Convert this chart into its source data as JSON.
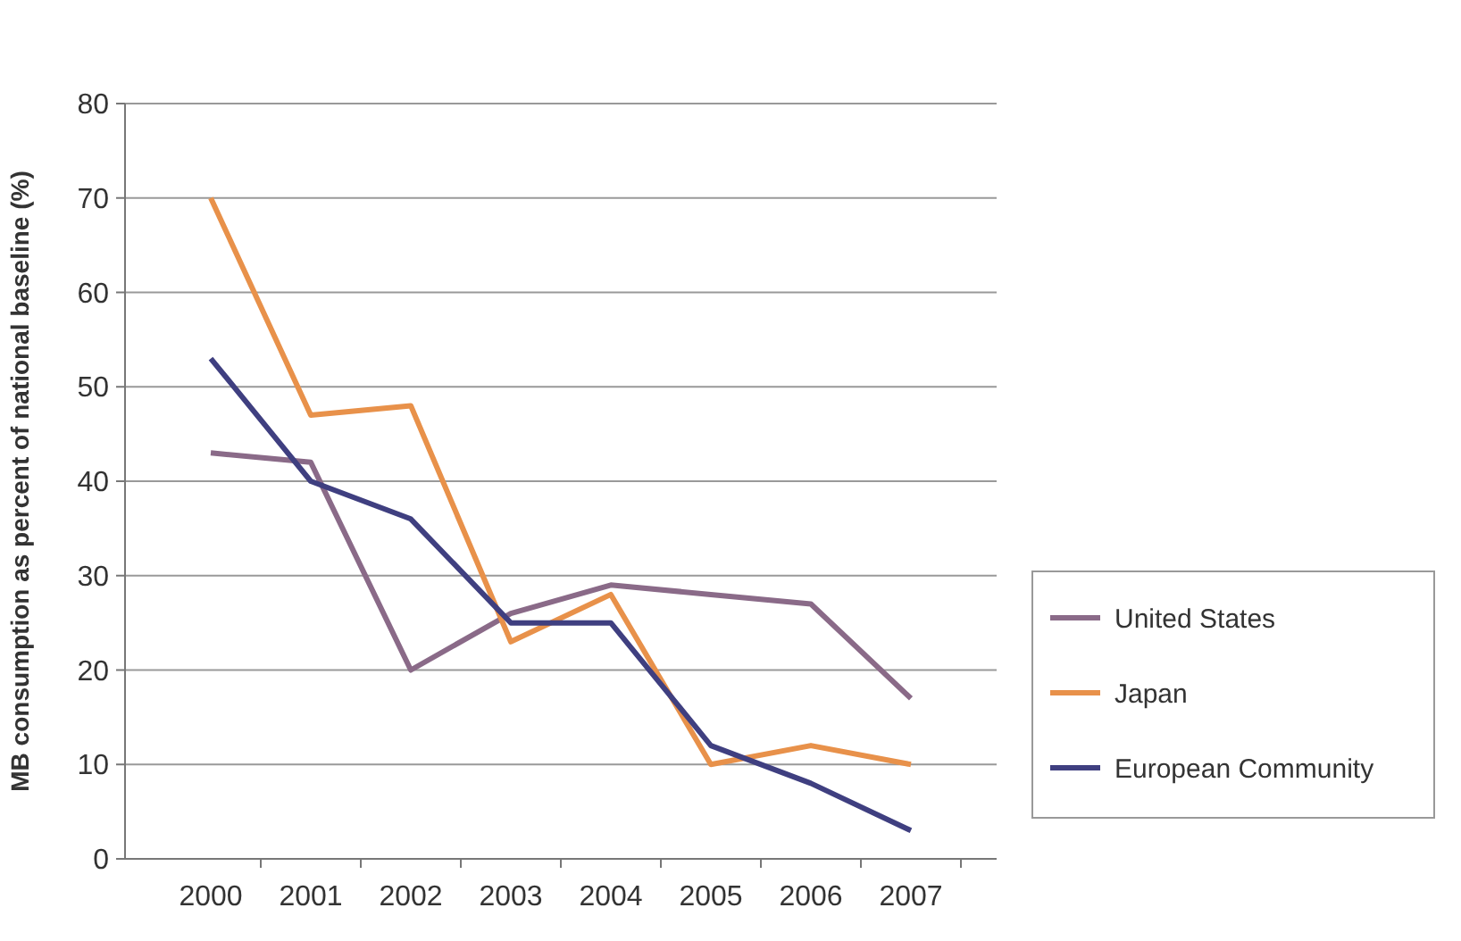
{
  "chart_data": {
    "type": "line",
    "ylabel": "MB consumption as percent of national baseline (%)",
    "categories": [
      "2000",
      "2001",
      "2002",
      "2003",
      "2004",
      "2005",
      "2006",
      "2007"
    ],
    "series": [
      {
        "name": "United States",
        "color": "#8a6a88",
        "values": [
          43,
          42,
          20,
          26,
          29,
          28,
          27,
          17
        ]
      },
      {
        "name": "Japan",
        "color": "#e8914a",
        "values": [
          70,
          47,
          48,
          23,
          28,
          10,
          12,
          10
        ]
      },
      {
        "name": "European Community",
        "color": "#3f3f80",
        "values": [
          53,
          40,
          36,
          25,
          25,
          12,
          8,
          3
        ]
      }
    ],
    "ylim": [
      0,
      80
    ],
    "yticks": [
      0,
      10,
      20,
      30,
      40,
      50,
      60,
      70,
      80
    ],
    "grid": "y",
    "legend": "right",
    "marker": "none",
    "line_style": "solid"
  }
}
